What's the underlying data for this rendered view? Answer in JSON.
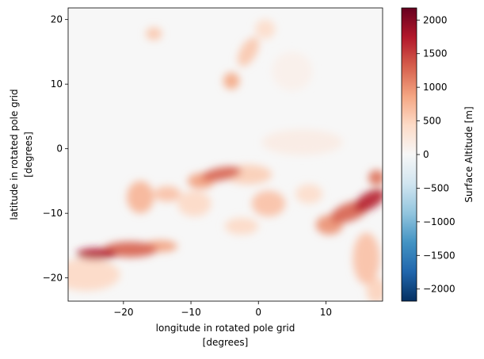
{
  "chart_data": {
    "type": "heatmap",
    "xlabel": [
      "longitude in rotated pole grid",
      "[degrees]"
    ],
    "ylabel": [
      "latitude in rotated pole grid",
      "[degrees]"
    ],
    "xlim": [
      -28.2,
      18.4
    ],
    "ylim": [
      -23.6,
      21.8
    ],
    "x_ticks": [
      -20,
      -10,
      0,
      10
    ],
    "x_tick_labels": [
      "−20",
      "−10",
      "0",
      "10"
    ],
    "y_ticks": [
      -20,
      -10,
      0,
      10,
      20
    ],
    "y_tick_labels": [
      "−20",
      "−10",
      "0",
      "10",
      "20"
    ],
    "colorbar": {
      "label": "Surface Altitude [m]",
      "colormap": "RdBu_r",
      "vmin": -2180,
      "vmax": 2180,
      "ticks": [
        -2000,
        -1500,
        -1000,
        -500,
        0,
        500,
        1000,
        1500,
        2000
      ],
      "tick_labels": [
        "−2000",
        "−1500",
        "−1000",
        "−500",
        "0",
        "500",
        "1000",
        "1500",
        "2000"
      ],
      "colors": [
        "#053061",
        "#2166ac",
        "#4393c3",
        "#92c5de",
        "#d1e5f0",
        "#f7f7f7",
        "#fddbc7",
        "#f4a582",
        "#d6604d",
        "#b2182b",
        "#67001f"
      ]
    },
    "features": [
      {
        "x": -24.0,
        "y": -16.3,
        "sx": 3.0,
        "sy": 0.9,
        "value": 1750,
        "rotation": 0
      },
      {
        "x": -19.0,
        "y": -15.6,
        "sx": 4.0,
        "sy": 1.2,
        "value": 1300,
        "rotation": 0
      },
      {
        "x": -14.5,
        "y": -15.1,
        "sx": 2.5,
        "sy": 0.9,
        "value": 900,
        "rotation": 0
      },
      {
        "x": -25.5,
        "y": -19.5,
        "sx": 5.0,
        "sy": 2.5,
        "value": 450,
        "rotation": 0
      },
      {
        "x": -5.5,
        "y": -3.9,
        "sx": 3.0,
        "sy": 1.0,
        "value": 1300,
        "rotation": -10
      },
      {
        "x": -8.5,
        "y": -5.0,
        "sx": 2.0,
        "sy": 1.2,
        "value": 900,
        "rotation": 0
      },
      {
        "x": -1.5,
        "y": -4.0,
        "sx": 3.5,
        "sy": 1.5,
        "value": 550,
        "rotation": 0
      },
      {
        "x": -17.5,
        "y": -7.5,
        "sx": 2.0,
        "sy": 2.5,
        "value": 750,
        "rotation": 0
      },
      {
        "x": -13.5,
        "y": -7.0,
        "sx": 2.0,
        "sy": 1.2,
        "value": 650,
        "rotation": 0
      },
      {
        "x": -9.5,
        "y": -8.5,
        "sx": 2.5,
        "sy": 2.0,
        "value": 450,
        "rotation": 0
      },
      {
        "x": 1.5,
        "y": -8.5,
        "sx": 2.5,
        "sy": 2.0,
        "value": 650,
        "rotation": 0
      },
      {
        "x": -2.5,
        "y": -12.0,
        "sx": 2.5,
        "sy": 1.3,
        "value": 450,
        "rotation": 0
      },
      {
        "x": 7.5,
        "y": -7.0,
        "sx": 2.0,
        "sy": 1.5,
        "value": 400,
        "rotation": 0
      },
      {
        "x": 16.5,
        "y": -8.0,
        "sx": 2.5,
        "sy": 1.3,
        "value": 1700,
        "rotation": -30
      },
      {
        "x": 13.5,
        "y": -9.8,
        "sx": 3.0,
        "sy": 1.4,
        "value": 1300,
        "rotation": -20
      },
      {
        "x": 10.5,
        "y": -11.8,
        "sx": 2.0,
        "sy": 1.5,
        "value": 1000,
        "rotation": 0
      },
      {
        "x": 17.5,
        "y": -4.5,
        "sx": 1.2,
        "sy": 1.2,
        "value": 1200,
        "rotation": 0
      },
      {
        "x": 16.0,
        "y": -17.0,
        "sx": 2.0,
        "sy": 4.0,
        "value": 650,
        "rotation": 0
      },
      {
        "x": 17.5,
        "y": -22.0,
        "sx": 1.5,
        "sy": 2.0,
        "value": 500,
        "rotation": 0
      },
      {
        "x": -4.0,
        "y": 10.5,
        "sx": 1.2,
        "sy": 1.3,
        "value": 850,
        "rotation": 0
      },
      {
        "x": -1.5,
        "y": 15.0,
        "sx": 1.2,
        "sy": 2.5,
        "value": 600,
        "rotation": 30
      },
      {
        "x": 1.0,
        "y": 18.5,
        "sx": 1.5,
        "sy": 1.5,
        "value": 400,
        "rotation": 0
      },
      {
        "x": -15.5,
        "y": 17.8,
        "sx": 1.2,
        "sy": 1.0,
        "value": 600,
        "rotation": 0
      },
      {
        "x": 5.0,
        "y": 12.0,
        "sx": 3.0,
        "sy": 3.0,
        "value": 120,
        "rotation": 0
      },
      {
        "x": 6.5,
        "y": 1.0,
        "sx": 6.0,
        "sy": 2.0,
        "value": 180,
        "rotation": 0
      }
    ]
  }
}
